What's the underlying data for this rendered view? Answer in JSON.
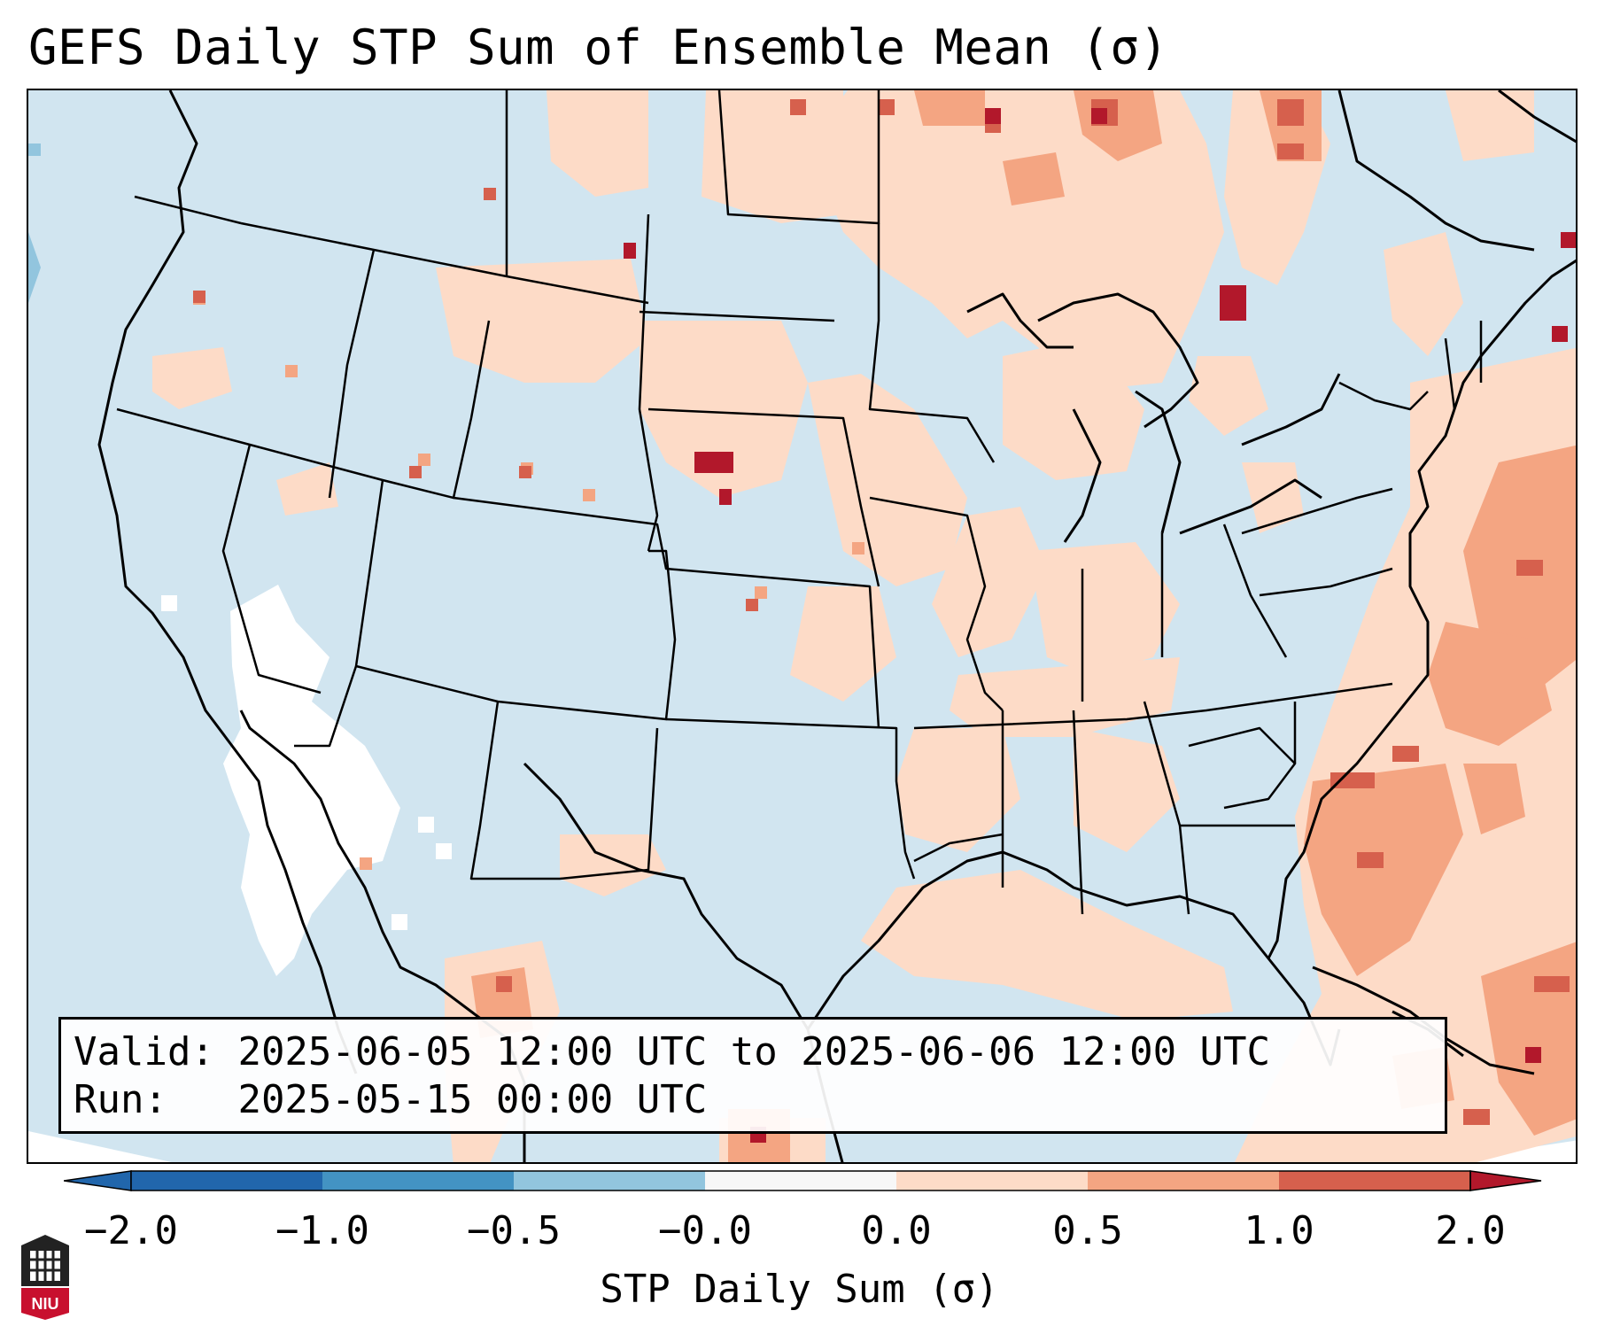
{
  "title": "GEFS Daily STP Sum of Ensemble Mean (σ)",
  "info": {
    "valid_label": "Valid:",
    "valid_value": "2025-06-05 12:00 UTC to 2025-06-06 12:00 UTC",
    "run_label": "Run:  ",
    "run_value": "2025-05-15 00:00 UTC"
  },
  "colorbar": {
    "label": "STP Daily Sum (σ)",
    "ticks": [
      "−2.0",
      "−1.0",
      "−0.5",
      "−0.0",
      "0.0",
      "0.5",
      "1.0",
      "2.0"
    ],
    "colors": [
      "#2166ac",
      "#4393c3",
      "#92c5de",
      "#d1e5f0",
      "#f7f7f7",
      "#fddbc7",
      "#f4a582",
      "#d6604d",
      "#b2182b"
    ],
    "extend": "both"
  },
  "logo_text": "NIU",
  "colors": {
    "ocean": "#d1e5f0",
    "white_area": "#ffffff",
    "light_red": "#fddbc7",
    "mid_red": "#f4a582",
    "red": "#d6604d",
    "dark_red": "#b2182b"
  }
}
